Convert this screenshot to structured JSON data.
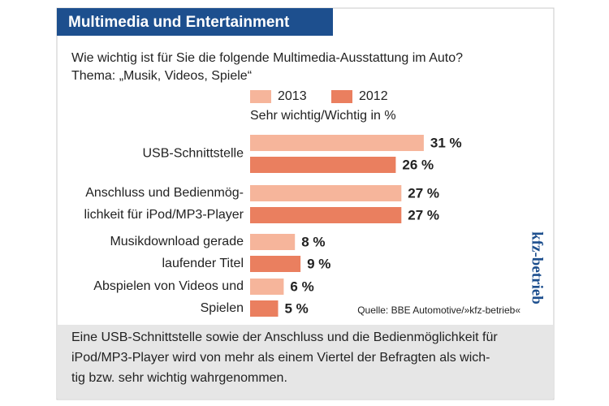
{
  "header": {
    "title": "Multimedia und Entertainment"
  },
  "chart_data": {
    "type": "bar",
    "orientation": "horizontal",
    "title": "Wie wichtig ist für Sie die folgende Multimedia-Ausstattung im Auto?",
    "subtitle": "Thema: „Musik, Videos, Spiele“",
    "unit_label": "Sehr wichtig/Wichtig in %",
    "categories": [
      [
        "USB-Schnittstelle"
      ],
      [
        "Anschluss und Bedienmög-",
        "lichkeit für iPod/MP3-Player"
      ],
      [
        "Musikdownload gerade",
        "laufender Titel"
      ],
      [
        "Abspielen von Videos und",
        "Spielen"
      ]
    ],
    "series": [
      {
        "name": "2013",
        "color": "#f6b59b",
        "values": [
          31,
          27,
          8,
          6
        ],
        "value_labels": [
          "31 %",
          "27 %",
          "8 %",
          "6 %"
        ]
      },
      {
        "name": "2012",
        "color": "#ea7f5f",
        "values": [
          26,
          27,
          9,
          5
        ],
        "value_labels": [
          "26 %",
          "27 %",
          "9 %",
          "5 %"
        ]
      }
    ],
    "source": "Quelle: BBE Automotive/»kfz-betrieb«"
  },
  "brand": "kfz-betrieb",
  "footer": {
    "lines": [
      "Eine USB-Schnittstelle sowie der Anschluss und die Bedienmöglichkeit für",
      "iPod/MP3-Player wird von mehr als einem Viertel der Befragten als wich-",
      "tig bzw. sehr wichtig wahrgenommen."
    ]
  }
}
